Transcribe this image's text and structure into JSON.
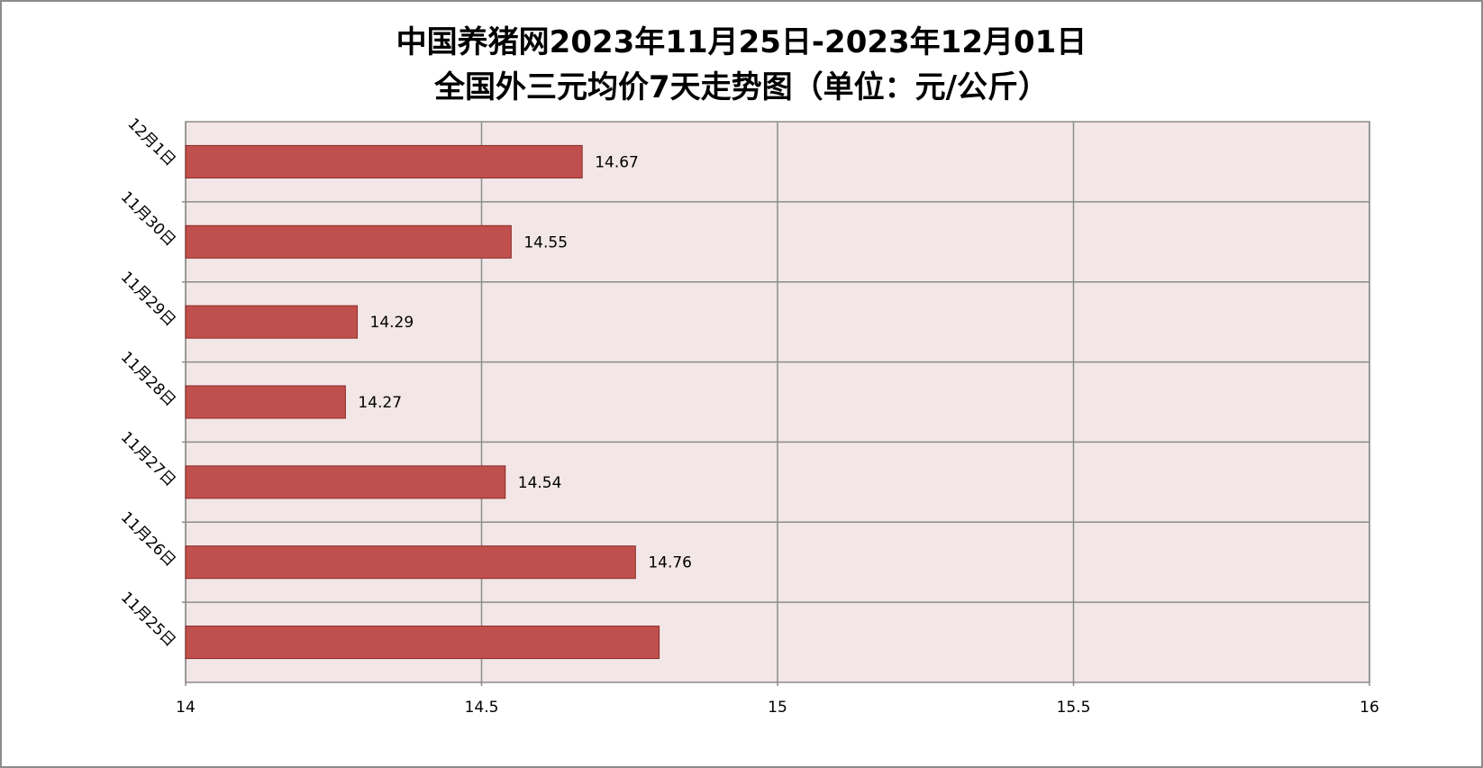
{
  "chart_data": {
    "type": "bar",
    "orientation": "horizontal",
    "title_lines": [
      "中国养猪网2023年11月25日-2023年12月01日",
      "全国外三元均价7天走势图（单位：元/公斤）"
    ],
    "categories": [
      "12月1日",
      "11月30日",
      "11月29日",
      "11月28日",
      "11月27日",
      "11月26日",
      "11月25日"
    ],
    "values": [
      14.67,
      14.55,
      14.29,
      14.27,
      14.54,
      14.76,
      14.8
    ],
    "data_labels": [
      "14.67",
      "14.55",
      "14.29",
      "14.27",
      "14.54",
      "14.76",
      null
    ],
    "x_ticks": [
      14,
      14.5,
      15,
      15.5,
      16
    ],
    "x_tick_labels": [
      "14",
      "14.5",
      "15",
      "15.5",
      "16"
    ],
    "xlim": [
      14,
      16
    ],
    "xlabel": "",
    "ylabel": "",
    "grid": true,
    "legend": "none",
    "colors": {
      "bar_fill": "#c0504d",
      "bar_stroke": "#8b2a28",
      "plot_background": "#f2e6e6",
      "grid": "#8c8c8c",
      "frame": "#8c8c8c"
    }
  }
}
